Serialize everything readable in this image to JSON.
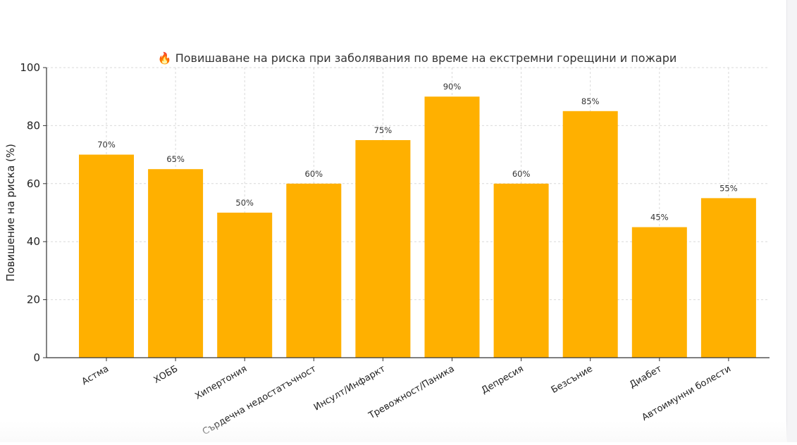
{
  "chart_data": {
    "type": "bar",
    "title": "🔥 Повишаване на риска при заболявания по време на екстремни горещини и пожари",
    "xlabel": "",
    "ylabel": "Повишение на риска (%)",
    "ylim": [
      0,
      100
    ],
    "yticks": [
      0,
      20,
      40,
      60,
      80,
      100
    ],
    "grid": true,
    "bar_color": "#FFB000",
    "categories": [
      "Астма",
      "ХОББ",
      "Хипертония",
      "Сърдечна недостатъчност",
      "Инсулт/Инфаркт",
      "Тревожност/Паника",
      "Депресия",
      "Безсъние",
      "Диабет",
      "Автоимунни болести"
    ],
    "values": [
      70,
      65,
      50,
      60,
      75,
      90,
      60,
      85,
      45,
      55
    ],
    "value_labels": [
      "70%",
      "65%",
      "50%",
      "60%",
      "75%",
      "90%",
      "60%",
      "85%",
      "45%",
      "55%"
    ]
  }
}
